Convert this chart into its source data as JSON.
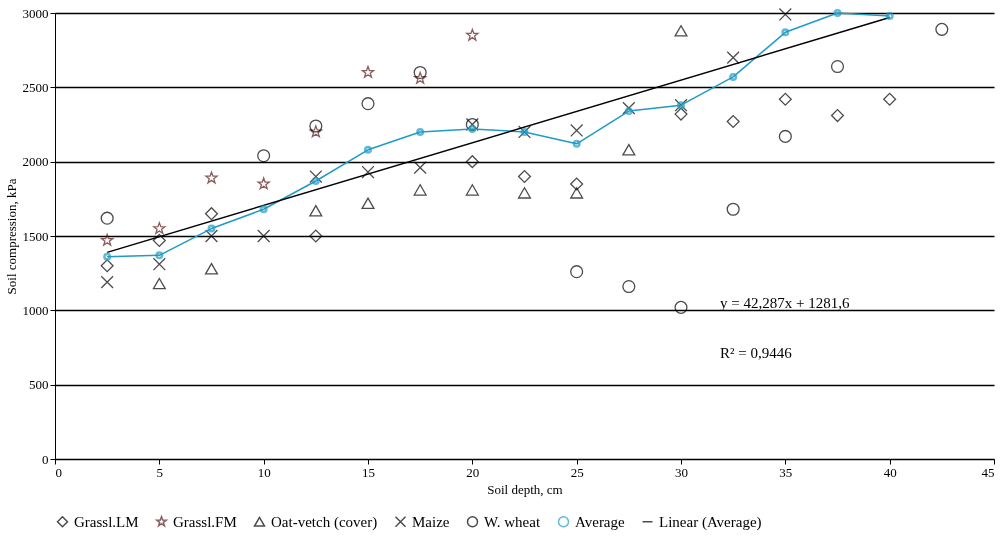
{
  "chart_data": {
    "type": "scatter",
    "xlabel": "Soil depth, cm",
    "ylabel": "Soil compression, kPa",
    "x": [
      2.5,
      5,
      7.5,
      10,
      12.5,
      15,
      17.5,
      20,
      22.5,
      25,
      27.5,
      30,
      32.5,
      35,
      37.5,
      40,
      42.5
    ],
    "series": [
      {
        "name": "Grassl.LM",
        "marker": "diamond",
        "color": "#000000",
        "values": [
          1300,
          1470,
          1650,
          null,
          1500,
          null,
          null,
          2000,
          1900,
          1850,
          null,
          2320,
          2270,
          2420,
          2310,
          2420,
          null
        ]
      },
      {
        "name": "Grassl.FM",
        "marker": "star",
        "color": "#5a1a1a",
        "values": [
          1470,
          1550,
          1890,
          1850,
          2200,
          2600,
          2560,
          2850,
          null,
          null,
          null,
          null,
          null,
          null,
          null,
          null,
          null
        ]
      },
      {
        "name": "Oat-vetch (cover)",
        "marker": "triangle",
        "color": "#000000",
        "values": [
          null,
          1180,
          1280,
          null,
          1670,
          1720,
          1810,
          1810,
          1790,
          1790,
          2080,
          2880,
          null,
          null,
          null,
          null,
          null
        ]
      },
      {
        "name": "Maize",
        "marker": "cross",
        "color": "#000000",
        "values": [
          1190,
          1310,
          1500,
          1500,
          1900,
          1930,
          1960,
          2250,
          2200,
          2210,
          2360,
          2380,
          2700,
          2990,
          null,
          null,
          null
        ]
      },
      {
        "name": "W. wheat",
        "marker": "circle",
        "color": "#000000",
        "values": [
          1620,
          null,
          null,
          2040,
          2240,
          2390,
          2600,
          2250,
          null,
          1260,
          1160,
          1020,
          1680,
          2170,
          2640,
          null,
          2890
        ]
      },
      {
        "name": "Average",
        "type": "line",
        "marker": "circle",
        "color": "#1f9bc4",
        "values": [
          1360,
          1370,
          1550,
          1680,
          1870,
          2080,
          2200,
          2220,
          2200,
          2120,
          2340,
          2380,
          2570,
          2870,
          3000,
          2980,
          null
        ]
      },
      {
        "name": "Linear (Average)",
        "type": "line",
        "marker": "none",
        "color": "#000000",
        "x": [
          2.5,
          40
        ],
        "values": [
          1390,
          2970
        ]
      }
    ],
    "xlim": [
      0,
      45
    ],
    "xticks": [
      0,
      5,
      10,
      15,
      20,
      25,
      30,
      35,
      40,
      45
    ],
    "ylim": [
      0,
      3000
    ],
    "yticks": [
      0,
      500,
      1000,
      1500,
      2000,
      2500,
      3000
    ],
    "grid": "y",
    "legend": "bottom",
    "annotations": [
      "y = 42,287x + 1281,6",
      "R² = 0,9446"
    ]
  }
}
